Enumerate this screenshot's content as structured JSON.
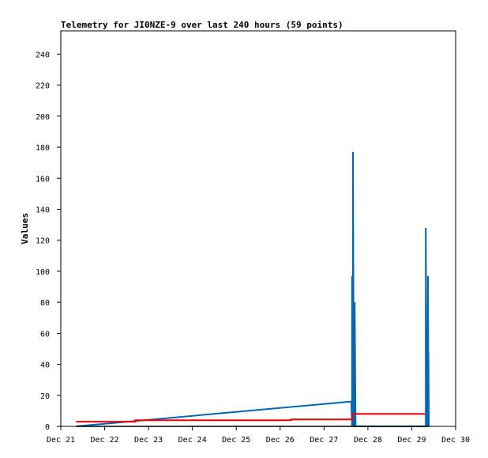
{
  "chart_data": {
    "type": "line",
    "title": "Telemetry for JI0NZE-9 over last 240 hours (59 points)",
    "xlabel": "",
    "ylabel": "Values",
    "x_categories": [
      "Dec 21",
      "Dec 22",
      "Dec 23",
      "Dec 24",
      "Dec 25",
      "Dec 26",
      "Dec 27",
      "Dec 28",
      "Dec 29",
      "Dec 30"
    ],
    "xlim_days": [
      0,
      9
    ],
    "ylim": [
      0,
      255
    ],
    "y_ticks": [
      0,
      20,
      40,
      60,
      80,
      100,
      120,
      140,
      160,
      180,
      200,
      220,
      240
    ],
    "grid": false,
    "legend": "none",
    "series": [
      {
        "color": "#0066bb",
        "points": [
          {
            "x": 0.35,
            "y": 0
          },
          {
            "x": 6.62,
            "y": 16
          },
          {
            "x": 6.64,
            "y": 0
          },
          {
            "x": 6.64,
            "y": 97
          },
          {
            "x": 6.66,
            "y": 0
          },
          {
            "x": 6.66,
            "y": 177
          },
          {
            "x": 6.68,
            "y": 0
          },
          {
            "x": 6.7,
            "y": 0
          },
          {
            "x": 6.7,
            "y": 80
          },
          {
            "x": 6.72,
            "y": 0
          },
          {
            "x": 8.32,
            "y": 0
          },
          {
            "x": 8.32,
            "y": 128
          },
          {
            "x": 8.34,
            "y": 0
          },
          {
            "x": 8.35,
            "y": 0
          },
          {
            "x": 8.35,
            "y": 48
          },
          {
            "x": 8.36,
            "y": 0
          },
          {
            "x": 8.37,
            "y": 97
          },
          {
            "x": 8.38,
            "y": 0
          },
          {
            "x": 8.38,
            "y": 48
          },
          {
            "x": 8.39,
            "y": 0
          }
        ]
      },
      {
        "color": "#ee0000",
        "points": [
          {
            "x": 0.35,
            "y": 3
          },
          {
            "x": 1.7,
            "y": 3
          },
          {
            "x": 1.7,
            "y": 4
          },
          {
            "x": 5.25,
            "y": 4
          },
          {
            "x": 5.25,
            "y": 4.5
          },
          {
            "x": 6.65,
            "y": 4.5
          },
          {
            "x": 6.65,
            "y": 8
          },
          {
            "x": 8.3,
            "y": 8
          }
        ]
      },
      {
        "color": "#000000",
        "points": [
          {
            "x": 0.35,
            "y": 0
          },
          {
            "x": 8.4,
            "y": 0
          }
        ]
      }
    ]
  }
}
